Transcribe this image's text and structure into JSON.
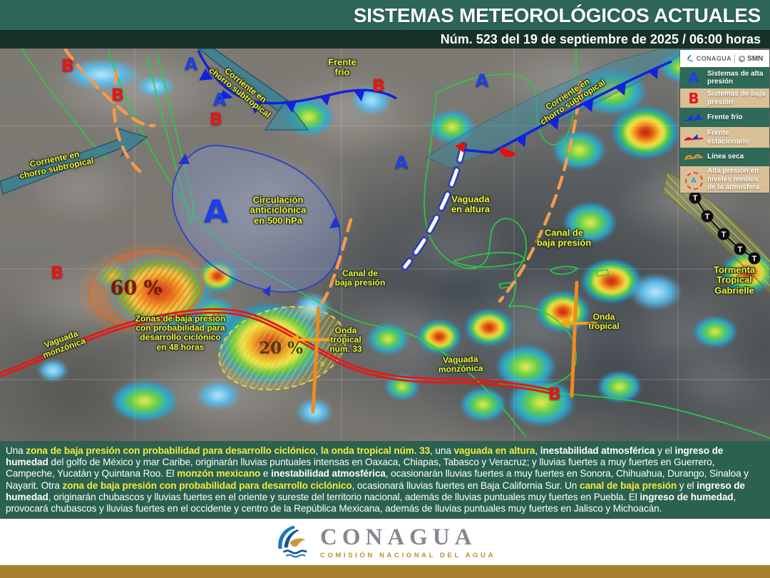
{
  "header": {
    "title": "SISTEMAS METEOROLÓGICOS ACTUALES",
    "subtitle": "Núm. 523 del 19 de septiembre de 2025 / 06:00 horas"
  },
  "legend": {
    "conagua": "CONAGUA",
    "smn": "SMN",
    "items": [
      {
        "symbol": "A",
        "label": "Sistemas de alta presión"
      },
      {
        "symbol": "B",
        "label": "Sistemas de baja presión"
      },
      {
        "symbol": "cold-front",
        "label": "Frente frío"
      },
      {
        "symbol": "stationary-front",
        "label": "Frente estacionario"
      },
      {
        "symbol": "dry-line",
        "label": "Línea seca"
      },
      {
        "symbol": "A",
        "label": "Alta presión en niveles medios de la atmosfera"
      }
    ]
  },
  "map": {
    "letter_a": "A",
    "letter_b": "B",
    "marker_x": "x",
    "track_t": "T",
    "labels": {
      "frente_frio": "Frente\nfrío",
      "jet": "Corriente en\nchorro subtropical",
      "anticiclon": "Circulación\nanticiclónica\nen 500 hPa",
      "vaguada_altura": "Vaguada\nen altura",
      "canal_baja": "Canal de\nbaja presión",
      "zonas_48": "Zonas de baja presión\ncon probabilidad para\ndesarrollo ciclónico\nen 48 horas",
      "pct60": "60 %",
      "pct20": "20 %",
      "onda33": "Onda\ntropical\nnúm. 33",
      "onda": "Onda\ntropical",
      "vaguada_monzonica": "Vaguada\nmonzónica",
      "gabrielle": "Tormenta\nTropical\nGabrielle"
    }
  },
  "summary": {
    "segments": [
      {
        "s": "n",
        "t": "Una "
      },
      {
        "s": "y",
        "t": "zona de baja presión con probabilidad para desarrollo ciclónico"
      },
      {
        "s": "n",
        "t": ", "
      },
      {
        "s": "y",
        "t": "la onda tropical núm. 33"
      },
      {
        "s": "n",
        "t": ", una "
      },
      {
        "s": "y",
        "t": "vaguada en altura"
      },
      {
        "s": "n",
        "t": ", "
      },
      {
        "s": "w",
        "t": "inestabilidad atmosférica"
      },
      {
        "s": "n",
        "t": " y el "
      },
      {
        "s": "w",
        "t": "ingreso de humedad"
      },
      {
        "s": "n",
        "t": " del golfo de México y mar Caribe, originarán lluvias puntuales intensas en Oaxaca, Chiapas, Tabasco y Veracruz; y lluvias fuertes a muy fuertes en Guerrero, Campeche, Yucatán y Quintana Roo. El "
      },
      {
        "s": "y",
        "t": "monzón mexicano"
      },
      {
        "s": "n",
        "t": " e "
      },
      {
        "s": "w",
        "t": "inestabilidad atmosférica"
      },
      {
        "s": "n",
        "t": ", ocasionarán lluvias fuertes a muy fuertes en Sonora, Chihuahua, Durango, Sinaloa y Nayarit. Otra "
      },
      {
        "s": "y",
        "t": "zona de baja presión con probabilidad para desarrollo ciclónico"
      },
      {
        "s": "n",
        "t": ", ocasionará lluvias fuertes en Baja California Sur. Un "
      },
      {
        "s": "y",
        "t": "canal de baja presión"
      },
      {
        "s": "n",
        "t": " y el "
      },
      {
        "s": "w",
        "t": "ingreso de humedad"
      },
      {
        "s": "n",
        "t": ", originarán chubascos y lluvias fuertes en el oriente y sureste del territorio nacional, además de lluvias puntuales muy fuertes en Puebla. El "
      },
      {
        "s": "w",
        "t": "ingreso de humedad"
      },
      {
        "s": "n",
        "t": ", provocará chubascos y lluvias fuertes en el occidente y centro de la República Mexicana, además de lluvias puntuales muy fuertes en Jalisco y Michoacán."
      }
    ]
  },
  "footer": {
    "brand": "CONAGUA",
    "tagline": "COMISIÓN NACIONAL DEL AGUA"
  }
}
